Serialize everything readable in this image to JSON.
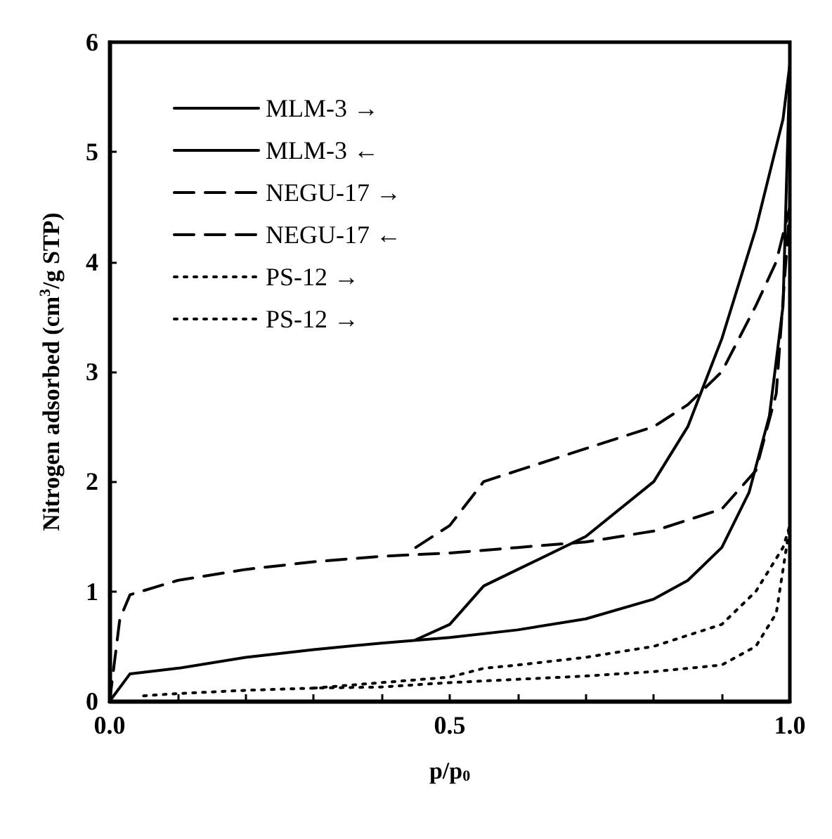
{
  "chart_data": {
    "type": "line",
    "xlabel": "p/p$_{0}$",
    "ylabel": "Nitrogen adsorbed (cm$^{3}$/g STP)",
    "xlim": [
      0,
      1
    ],
    "xticks": [
      {
        "value": 0,
        "label": "0.0"
      },
      {
        "value": 0.1,
        "label": null
      },
      {
        "value": 0.2,
        "label": null
      },
      {
        "value": 0.3,
        "label": null
      },
      {
        "value": 0.4,
        "label": null
      },
      {
        "value": 0.5,
        "label": "0.5"
      },
      {
        "value": 0.6,
        "label": null
      },
      {
        "value": 0.7,
        "label": null
      },
      {
        "value": 0.8,
        "label": null
      },
      {
        "value": 0.9,
        "label": null
      },
      {
        "value": 1,
        "label": "1.0"
      }
    ],
    "ylim": [
      0,
      6
    ],
    "yticks": [
      0,
      1,
      2,
      3,
      4,
      5,
      6
    ],
    "grid": false,
    "legend": "top left",
    "marker": "none",
    "series": [
      {
        "name": "MLM-3 →",
        "color": "#000000",
        "line_style": "solid",
        "x": [
          0,
          0.03,
          0.1,
          0.2,
          0.3,
          0.4,
          0.5,
          0.6,
          0.7,
          0.8,
          0.85,
          0.9,
          0.94,
          0.97,
          0.99,
          1
        ],
        "values": [
          0,
          0.25,
          0.3,
          0.4,
          0.47,
          0.53,
          0.58,
          0.65,
          0.75,
          0.93,
          1.1,
          1.4,
          1.9,
          2.6,
          3.6,
          5.8
        ]
      },
      {
        "name": "MLM-3 ←",
        "color": "#000000",
        "line_style": "solid",
        "x": [
          0.45,
          0.5,
          0.55,
          0.6,
          0.7,
          0.8,
          0.85,
          0.9,
          0.95,
          0.99,
          1
        ],
        "values": [
          0.56,
          0.7,
          1.05,
          1.2,
          1.5,
          2,
          2.5,
          3.3,
          4.3,
          5.3,
          5.8
        ]
      },
      {
        "name": "NEGU-17 →",
        "color": "#000000",
        "line_style": "dashed",
        "x": [
          0,
          0.015,
          0.03,
          0.1,
          0.2,
          0.3,
          0.4,
          0.5,
          0.6,
          0.7,
          0.8,
          0.9,
          0.95,
          0.98,
          1
        ],
        "values": [
          0,
          0.75,
          0.97,
          1.1,
          1.2,
          1.27,
          1.32,
          1.35,
          1.4,
          1.45,
          1.55,
          1.75,
          2.1,
          2.8,
          4.5
        ]
      },
      {
        "name": "NEGU-17 ←",
        "color": "#000000",
        "line_style": "dashed",
        "x": [
          0.45,
          0.5,
          0.55,
          0.6,
          0.7,
          0.8,
          0.85,
          0.9,
          0.95,
          0.98,
          1
        ],
        "values": [
          1.4,
          1.6,
          2,
          2.1,
          2.3,
          2.5,
          2.7,
          3,
          3.6,
          4,
          4.5
        ]
      },
      {
        "name": "PS-12 →",
        "color": "#000000",
        "line_style": "dotted",
        "x": [
          0.05,
          0.1,
          0.2,
          0.3,
          0.4,
          0.5,
          0.6,
          0.7,
          0.8,
          0.9,
          0.95,
          0.98,
          1
        ],
        "values": [
          0.05,
          0.07,
          0.1,
          0.12,
          0.13,
          0.17,
          0.2,
          0.23,
          0.27,
          0.33,
          0.5,
          0.8,
          1.6
        ]
      },
      {
        "name": "PS-12 →",
        "color": "#000000",
        "line_style": "dotted",
        "x": [
          0.3,
          0.5,
          0.55,
          0.6,
          0.7,
          0.8,
          0.9,
          0.95,
          0.99,
          1
        ],
        "values": [
          0.12,
          0.22,
          0.3,
          0.33,
          0.4,
          0.5,
          0.7,
          1,
          1.4,
          1.6
        ]
      }
    ]
  }
}
